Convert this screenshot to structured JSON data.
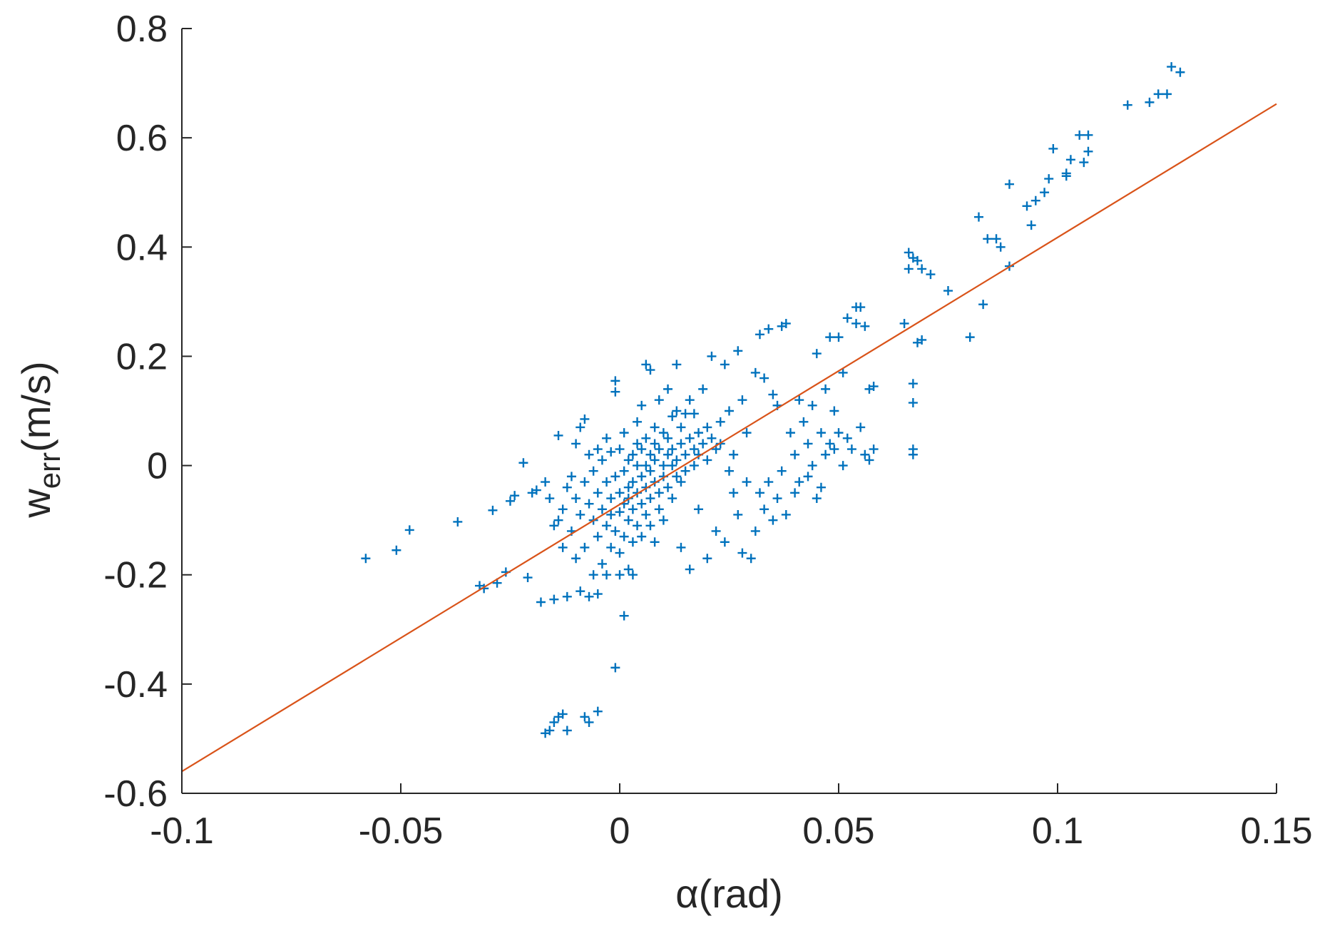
{
  "chart_data": {
    "type": "scatter",
    "title": "",
    "xlabel": "α(rad)",
    "ylabel": "w",
    "ylabel_subscript": "err",
    "ylabel_unit": "(m/s)",
    "xlim": [
      -0.1,
      0.15
    ],
    "ylim": [
      -0.6,
      0.8
    ],
    "xticks": [
      -0.1,
      -0.05,
      0,
      0.05,
      0.1,
      0.15
    ],
    "xtick_labels": [
      "-0.1",
      "-0.05",
      "0",
      "0.05",
      "0.1",
      "0.15"
    ],
    "yticks": [
      -0.6,
      -0.4,
      -0.2,
      0,
      0.2,
      0.4,
      0.6,
      0.8
    ],
    "ytick_labels": [
      "-0.6",
      "-0.4",
      "-0.2",
      "0",
      "0.2",
      "0.4",
      "0.6",
      "0.8"
    ],
    "grid": false,
    "legend": "none",
    "series": [
      {
        "type": "scatter",
        "marker": "plus",
        "color": "#0072BD",
        "points": [
          [
            -0.058,
            -0.17
          ],
          [
            -0.051,
            -0.155
          ],
          [
            -0.048,
            -0.118
          ],
          [
            -0.037,
            -0.103
          ],
          [
            -0.032,
            -0.22
          ],
          [
            -0.031,
            -0.225
          ],
          [
            -0.029,
            -0.082
          ],
          [
            -0.028,
            -0.215
          ],
          [
            -0.026,
            -0.195
          ],
          [
            -0.025,
            -0.065
          ],
          [
            -0.024,
            -0.055
          ],
          [
            -0.022,
            0.005
          ],
          [
            -0.021,
            -0.205
          ],
          [
            -0.02,
            -0.05
          ],
          [
            -0.019,
            -0.045
          ],
          [
            -0.018,
            -0.25
          ],
          [
            -0.017,
            -0.03
          ],
          [
            -0.016,
            -0.06
          ],
          [
            -0.015,
            -0.11
          ],
          [
            -0.015,
            -0.245
          ],
          [
            -0.014,
            0.055
          ],
          [
            -0.014,
            -0.1
          ],
          [
            -0.013,
            -0.08
          ],
          [
            -0.013,
            -0.15
          ],
          [
            -0.012,
            -0.04
          ],
          [
            -0.012,
            -0.24
          ],
          [
            -0.011,
            -0.02
          ],
          [
            -0.011,
            -0.12
          ],
          [
            -0.01,
            -0.06
          ],
          [
            -0.01,
            -0.17
          ],
          [
            -0.01,
            0.04
          ],
          [
            -0.009,
            -0.23
          ],
          [
            -0.009,
            -0.09
          ],
          [
            -0.009,
            0.07
          ],
          [
            -0.008,
            -0.03
          ],
          [
            -0.008,
            -0.15
          ],
          [
            -0.008,
            0.085
          ],
          [
            -0.007,
            -0.24
          ],
          [
            -0.007,
            -0.07
          ],
          [
            -0.007,
            0.02
          ],
          [
            -0.006,
            -0.1
          ],
          [
            -0.006,
            -0.2
          ],
          [
            -0.006,
            -0.01
          ],
          [
            -0.005,
            -0.235
          ],
          [
            -0.005,
            -0.05
          ],
          [
            -0.005,
            0.03
          ],
          [
            -0.005,
            -0.13
          ],
          [
            -0.004,
            -0.08
          ],
          [
            -0.004,
            -0.18
          ],
          [
            -0.004,
            0.01
          ],
          [
            -0.003,
            -0.03
          ],
          [
            -0.003,
            -0.11
          ],
          [
            -0.003,
            -0.2
          ],
          [
            -0.003,
            0.05
          ],
          [
            -0.002,
            -0.06
          ],
          [
            -0.002,
            -0.15
          ],
          [
            -0.002,
            0.025
          ],
          [
            -0.002,
            -0.09
          ],
          [
            -0.001,
            -0.02
          ],
          [
            -0.001,
            -0.12
          ],
          [
            -0.001,
            0.155
          ],
          [
            -0.001,
            0.135
          ],
          [
            -0.001,
            -0.37
          ],
          [
            0.0,
            -0.05
          ],
          [
            0.0,
            -0.16
          ],
          [
            0.0,
            0.03
          ],
          [
            0.0,
            -0.085
          ],
          [
            0.0,
            -0.2
          ],
          [
            0.001,
            -0.01
          ],
          [
            0.001,
            -0.07
          ],
          [
            0.001,
            -0.13
          ],
          [
            0.001,
            0.06
          ],
          [
            0.001,
            -0.275
          ],
          [
            0.002,
            -0.04
          ],
          [
            0.002,
            -0.1
          ],
          [
            0.002,
            0.01
          ],
          [
            0.002,
            -0.19
          ],
          [
            0.002,
            -0.06
          ],
          [
            0.003,
            0.02
          ],
          [
            0.003,
            -0.03
          ],
          [
            0.003,
            -0.08
          ],
          [
            0.003,
            -0.14
          ],
          [
            0.003,
            -0.2
          ],
          [
            0.004,
            0.04
          ],
          [
            0.004,
            -0.05
          ],
          [
            0.004,
            -0.11
          ],
          [
            0.004,
            0.0
          ],
          [
            0.004,
            0.08
          ],
          [
            0.005,
            -0.02
          ],
          [
            0.005,
            -0.07
          ],
          [
            0.005,
            -0.13
          ],
          [
            0.005,
            0.03
          ],
          [
            0.005,
            0.11
          ],
          [
            0.006,
            -0.04
          ],
          [
            0.006,
            0.0
          ],
          [
            0.006,
            -0.09
          ],
          [
            0.006,
            0.05
          ],
          [
            0.006,
            0.185
          ],
          [
            0.007,
            0.175
          ],
          [
            0.007,
            -0.01
          ],
          [
            0.007,
            -0.06
          ],
          [
            0.007,
            0.02
          ],
          [
            0.007,
            -0.11
          ],
          [
            0.008,
            0.04
          ],
          [
            0.008,
            -0.03
          ],
          [
            0.008,
            0.07
          ],
          [
            0.008,
            -0.14
          ],
          [
            0.008,
            0.01
          ],
          [
            0.009,
            -0.05
          ],
          [
            0.009,
            0.03
          ],
          [
            0.009,
            0.12
          ],
          [
            0.009,
            -0.08
          ],
          [
            0.01,
            0.0
          ],
          [
            0.01,
            -0.02
          ],
          [
            0.01,
            0.06
          ],
          [
            0.01,
            -0.1
          ],
          [
            0.011,
            0.02
          ],
          [
            0.011,
            0.14
          ],
          [
            0.011,
            -0.04
          ],
          [
            0.011,
            0.05
          ],
          [
            0.012,
            0.0
          ],
          [
            0.012,
            0.09
          ],
          [
            0.012,
            -0.06
          ],
          [
            0.012,
            0.03
          ],
          [
            0.013,
            -0.02
          ],
          [
            0.013,
            0.1
          ],
          [
            0.013,
            0.01
          ],
          [
            0.013,
            0.185
          ],
          [
            0.014,
            0.04
          ],
          [
            0.014,
            -0.03
          ],
          [
            0.014,
            0.07
          ],
          [
            0.014,
            -0.15
          ],
          [
            0.015,
            0.02
          ],
          [
            0.015,
            0.095
          ],
          [
            0.015,
            -0.01
          ],
          [
            0.016,
            0.05
          ],
          [
            0.016,
            0.12
          ],
          [
            0.016,
            -0.19
          ],
          [
            0.017,
            0.03
          ],
          [
            0.017,
            0.0
          ],
          [
            0.017,
            0.095
          ],
          [
            0.018,
            0.06
          ],
          [
            0.018,
            0.02
          ],
          [
            0.018,
            -0.08
          ],
          [
            0.019,
            0.04
          ],
          [
            0.019,
            0.14
          ],
          [
            0.02,
            0.01
          ],
          [
            0.02,
            0.07
          ],
          [
            0.02,
            -0.17
          ],
          [
            0.021,
            0.05
          ],
          [
            0.021,
            0.2
          ],
          [
            0.022,
            0.03
          ],
          [
            0.022,
            -0.12
          ],
          [
            0.023,
            0.08
          ],
          [
            0.023,
            0.04
          ],
          [
            0.024,
            -0.14
          ],
          [
            0.024,
            0.185
          ],
          [
            0.025,
            -0.01
          ],
          [
            0.025,
            0.1
          ],
          [
            0.026,
            -0.05
          ],
          [
            0.026,
            0.02
          ],
          [
            0.027,
            0.21
          ],
          [
            0.027,
            -0.09
          ],
          [
            0.028,
            -0.16
          ],
          [
            0.028,
            0.12
          ],
          [
            0.029,
            -0.03
          ],
          [
            0.029,
            0.06
          ],
          [
            0.03,
            -0.17
          ],
          [
            0.031,
            0.17
          ],
          [
            0.031,
            -0.12
          ],
          [
            0.032,
            -0.05
          ],
          [
            0.032,
            0.24
          ],
          [
            0.033,
            0.16
          ],
          [
            0.033,
            -0.08
          ],
          [
            0.034,
            0.25
          ],
          [
            0.034,
            -0.03
          ],
          [
            0.035,
            0.13
          ],
          [
            0.035,
            -0.1
          ],
          [
            0.036,
            -0.06
          ],
          [
            0.036,
            0.11
          ],
          [
            0.037,
            0.255
          ],
          [
            0.037,
            -0.01
          ],
          [
            0.038,
            0.26
          ],
          [
            0.038,
            -0.09
          ],
          [
            0.039,
            0.06
          ],
          [
            0.04,
            -0.05
          ],
          [
            0.04,
            0.02
          ],
          [
            0.041,
            0.12
          ],
          [
            0.041,
            -0.03
          ],
          [
            0.042,
            0.08
          ],
          [
            0.043,
            0.04
          ],
          [
            0.043,
            -0.02
          ],
          [
            0.044,
            0.11
          ],
          [
            0.044,
            0.0
          ],
          [
            0.045,
            -0.06
          ],
          [
            0.045,
            0.205
          ],
          [
            0.046,
            0.06
          ],
          [
            0.046,
            -0.04
          ],
          [
            0.047,
            0.02
          ],
          [
            0.047,
            0.14
          ],
          [
            0.048,
            0.04
          ],
          [
            0.048,
            0.235
          ],
          [
            0.049,
            0.03
          ],
          [
            0.049,
            0.1
          ],
          [
            0.05,
            0.06
          ],
          [
            0.05,
            0.235
          ],
          [
            0.051,
            0.0
          ],
          [
            0.051,
            0.17
          ],
          [
            0.052,
            0.05
          ],
          [
            0.052,
            0.27
          ],
          [
            0.053,
            0.03
          ],
          [
            0.054,
            0.29
          ],
          [
            0.054,
            0.26
          ],
          [
            0.055,
            0.07
          ],
          [
            0.055,
            0.29
          ],
          [
            0.056,
            0.02
          ],
          [
            0.056,
            0.255
          ],
          [
            0.057,
            0.14
          ],
          [
            0.057,
            0.01
          ],
          [
            0.058,
            0.145
          ],
          [
            0.058,
            0.03
          ],
          [
            0.065,
            0.26
          ],
          [
            0.066,
            0.36
          ],
          [
            0.066,
            0.39
          ],
          [
            0.067,
            0.38
          ],
          [
            0.067,
            0.02
          ],
          [
            0.067,
            0.03
          ],
          [
            0.067,
            0.15
          ],
          [
            0.067,
            0.115
          ],
          [
            0.068,
            0.225
          ],
          [
            0.068,
            0.375
          ],
          [
            0.069,
            0.36
          ],
          [
            0.069,
            0.23
          ],
          [
            0.071,
            0.35
          ],
          [
            0.075,
            0.32
          ],
          [
            0.08,
            0.235
          ],
          [
            0.082,
            0.455
          ],
          [
            0.083,
            0.295
          ],
          [
            0.084,
            0.415
          ],
          [
            0.086,
            0.415
          ],
          [
            0.087,
            0.4
          ],
          [
            0.089,
            0.515
          ],
          [
            0.089,
            0.365
          ],
          [
            0.093,
            0.475
          ],
          [
            0.094,
            0.44
          ],
          [
            0.095,
            0.485
          ],
          [
            0.097,
            0.5
          ],
          [
            0.098,
            0.525
          ],
          [
            0.099,
            0.58
          ],
          [
            0.102,
            0.53
          ],
          [
            0.102,
            0.535
          ],
          [
            0.103,
            0.56
          ],
          [
            0.105,
            0.605
          ],
          [
            0.106,
            0.555
          ],
          [
            0.107,
            0.575
          ],
          [
            0.107,
            0.605
          ],
          [
            0.116,
            0.66
          ],
          [
            0.121,
            0.665
          ],
          [
            0.123,
            0.68
          ],
          [
            0.125,
            0.68
          ],
          [
            0.126,
            0.73
          ],
          [
            0.128,
            0.72
          ],
          [
            -0.017,
            -0.49
          ],
          [
            -0.016,
            -0.485
          ],
          [
            -0.015,
            -0.47
          ],
          [
            -0.014,
            -0.46
          ],
          [
            -0.013,
            -0.455
          ],
          [
            -0.012,
            -0.485
          ],
          [
            -0.008,
            -0.46
          ],
          [
            -0.007,
            -0.47
          ],
          [
            -0.005,
            -0.45
          ]
        ]
      },
      {
        "type": "line",
        "color": "#D95319",
        "x": [
          -0.1,
          0.15
        ],
        "y": [
          -0.56,
          0.662
        ]
      }
    ]
  }
}
